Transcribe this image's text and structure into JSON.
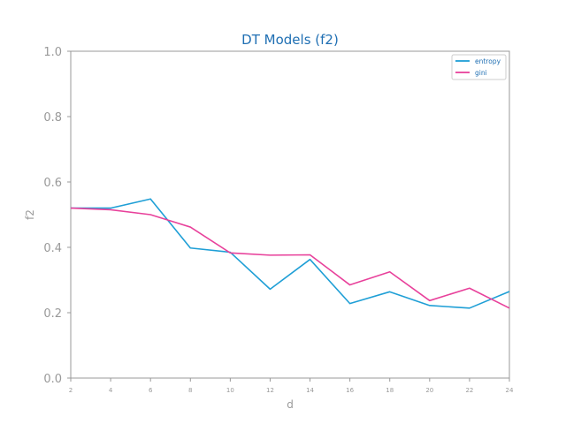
{
  "chart_data": {
    "type": "line",
    "title": "DT Models (f2)",
    "xlabel": "d",
    "ylabel": "f2",
    "x": [
      2,
      4,
      6,
      8,
      10,
      12,
      14,
      16,
      18,
      20,
      22,
      24
    ],
    "xlim": [
      2,
      24
    ],
    "ylim": [
      0.0,
      1.0
    ],
    "x_ticks": [
      "2",
      "4",
      "6",
      "8",
      "10",
      "12",
      "14",
      "16",
      "18",
      "20",
      "22",
      "24"
    ],
    "y_ticks": [
      "0.0",
      "0.2",
      "0.4",
      "0.6",
      "0.8",
      "1.0"
    ],
    "grid": false,
    "legend_position": "top-right",
    "series": [
      {
        "name": "entropy",
        "color": "#1f9fd6",
        "values": [
          0.52,
          0.52,
          0.548,
          0.398,
          0.385,
          0.272,
          0.363,
          0.228,
          0.264,
          0.222,
          0.214,
          0.265
        ]
      },
      {
        "name": "gini",
        "color": "#e8419b",
        "values": [
          0.52,
          0.515,
          0.5,
          0.462,
          0.383,
          0.376,
          0.377,
          0.285,
          0.325,
          0.237,
          0.275,
          0.214
        ]
      }
    ],
    "colors": {
      "title": "#1f6fb3",
      "axis": "#999999",
      "text": "#999999",
      "legend_text": "#1f6fb3"
    }
  }
}
